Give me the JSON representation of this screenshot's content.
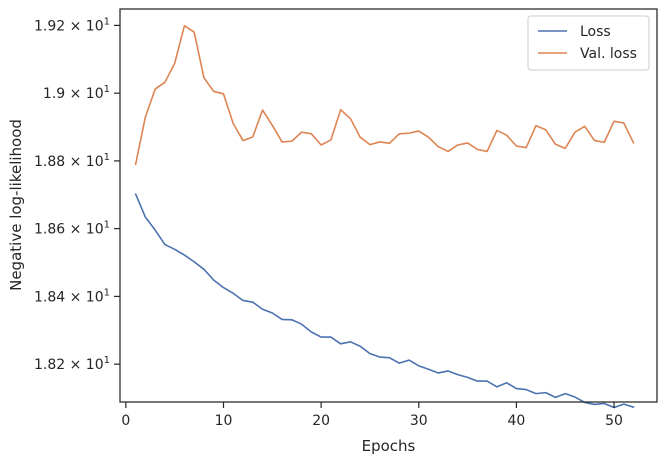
{
  "chart_data": {
    "type": "line",
    "xlabel": "Epochs",
    "ylabel": "Negative log-likelihood",
    "xlim": [
      -0.6,
      54.4
    ],
    "ylim": [
      18.0883,
      19.2484
    ],
    "x_ticks": [
      0,
      10,
      20,
      30,
      40,
      50
    ],
    "x_tick_labels": [
      "0",
      "10",
      "20",
      "30",
      "40",
      "50"
    ],
    "y_ticks": [
      18.2,
      18.4,
      18.6,
      18.8,
      19.0,
      19.2
    ],
    "y_tick_labels": [
      {
        "mantissa": "1.82",
        "base": "10",
        "exp": "1"
      },
      {
        "mantissa": "1.84",
        "base": "10",
        "exp": "1"
      },
      {
        "mantissa": "1.86",
        "base": "10",
        "exp": "1"
      },
      {
        "mantissa": "1.88",
        "base": "10",
        "exp": "1"
      },
      {
        "mantissa": "1.9",
        "base": "10",
        "exp": "1"
      },
      {
        "mantissa": "1.92",
        "base": "10",
        "exp": "1"
      }
    ],
    "grid": false,
    "legend_position": "top-right",
    "x": [
      1,
      2,
      3,
      4,
      5,
      6,
      7,
      8,
      9,
      10,
      11,
      12,
      13,
      14,
      15,
      16,
      17,
      18,
      19,
      20,
      21,
      22,
      23,
      24,
      25,
      26,
      27,
      28,
      29,
      30,
      31,
      32,
      33,
      34,
      35,
      36,
      37,
      38,
      39,
      40,
      41,
      42,
      43,
      44,
      45,
      46,
      47,
      48,
      49,
      50,
      51,
      52
    ],
    "series": [
      {
        "name": "Loss",
        "color": "#4c72b0",
        "values": [
          18.702,
          18.634,
          18.596,
          18.553,
          18.539,
          18.522,
          18.502,
          18.48,
          18.448,
          18.426,
          18.409,
          18.388,
          18.383,
          18.362,
          18.351,
          18.332,
          18.331,
          18.318,
          18.295,
          18.28,
          18.28,
          18.26,
          18.266,
          18.253,
          18.231,
          18.221,
          18.219,
          18.203,
          18.212,
          18.195,
          18.185,
          18.174,
          18.18,
          18.169,
          18.161,
          18.15,
          18.15,
          18.133,
          18.145,
          18.128,
          18.125,
          18.113,
          18.116,
          18.102,
          18.113,
          18.103,
          18.087,
          18.081,
          18.084,
          18.072,
          18.082,
          18.073
        ]
      },
      {
        "name": "Val. loss",
        "color": "#dd8452",
        "values": [
          18.79,
          18.93,
          19.012,
          19.032,
          19.088,
          19.199,
          19.18,
          19.045,
          19.005,
          18.998,
          18.91,
          18.86,
          18.871,
          18.95,
          18.905,
          18.856,
          18.858,
          18.885,
          18.88,
          18.847,
          18.862,
          18.951,
          18.925,
          18.87,
          18.848,
          18.856,
          18.852,
          18.88,
          18.882,
          18.888,
          18.87,
          18.842,
          18.828,
          18.847,
          18.853,
          18.834,
          18.828,
          18.89,
          18.876,
          18.844,
          18.839,
          18.904,
          18.892,
          18.849,
          18.837,
          18.885,
          18.902,
          18.86,
          18.855,
          18.917,
          18.912,
          18.853
        ]
      }
    ]
  }
}
